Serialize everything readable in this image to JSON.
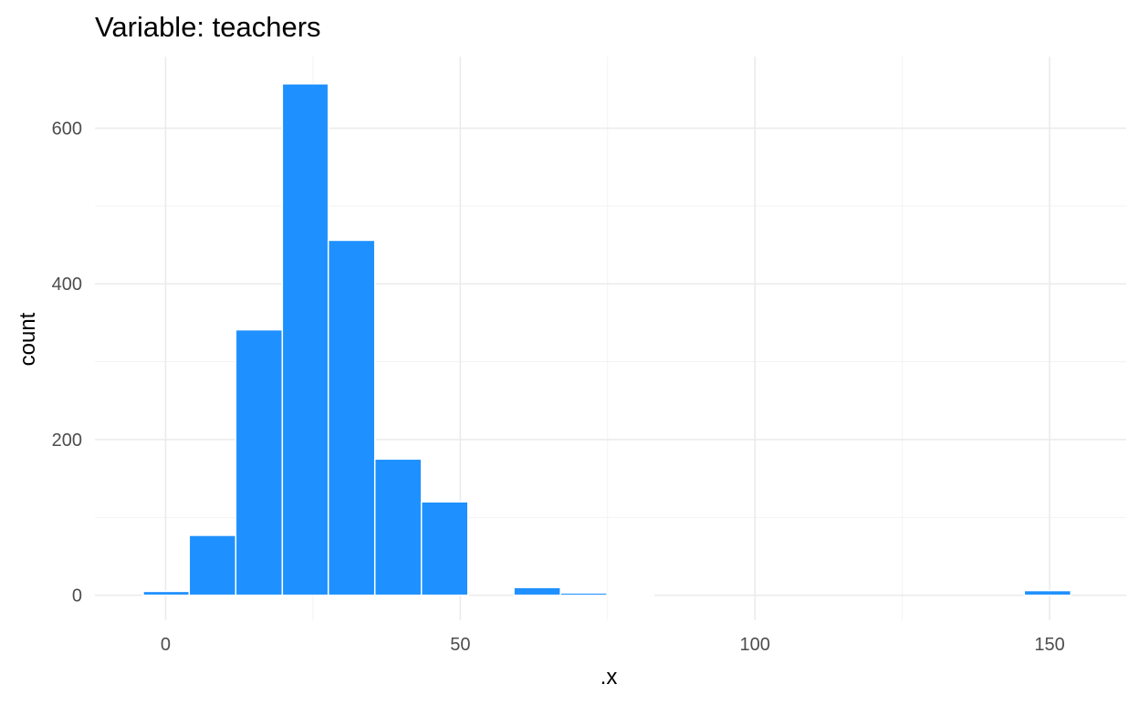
{
  "chart_data": {
    "type": "bar",
    "title": "Variable: teachers",
    "xlabel": ".x",
    "ylabel": "count",
    "x_ticks": [
      0,
      50,
      100,
      150
    ],
    "y_ticks": [
      0,
      200,
      400,
      600
    ],
    "xlim": [
      -12,
      163
    ],
    "ylim": [
      -32,
      692
    ],
    "grid": true,
    "bin_width": 7.87,
    "bins": [
      {
        "start": -3.8,
        "end": 4.0,
        "count": 5
      },
      {
        "start": 4.0,
        "end": 11.9,
        "count": 77
      },
      {
        "start": 11.9,
        "end": 19.8,
        "count": 341
      },
      {
        "start": 19.8,
        "end": 27.6,
        "count": 657
      },
      {
        "start": 27.6,
        "end": 35.5,
        "count": 456
      },
      {
        "start": 35.5,
        "end": 43.4,
        "count": 175
      },
      {
        "start": 43.4,
        "end": 51.3,
        "count": 120
      },
      {
        "start": 59.1,
        "end": 67.0,
        "count": 10
      },
      {
        "start": 67.0,
        "end": 74.9,
        "count": 3
      },
      {
        "start": 74.9,
        "end": 82.8,
        "count": 1
      },
      {
        "start": 145.7,
        "end": 153.6,
        "count": 6
      }
    ],
    "bar_color": "#1E90FF",
    "bar_outline": "#FFFFFF"
  }
}
